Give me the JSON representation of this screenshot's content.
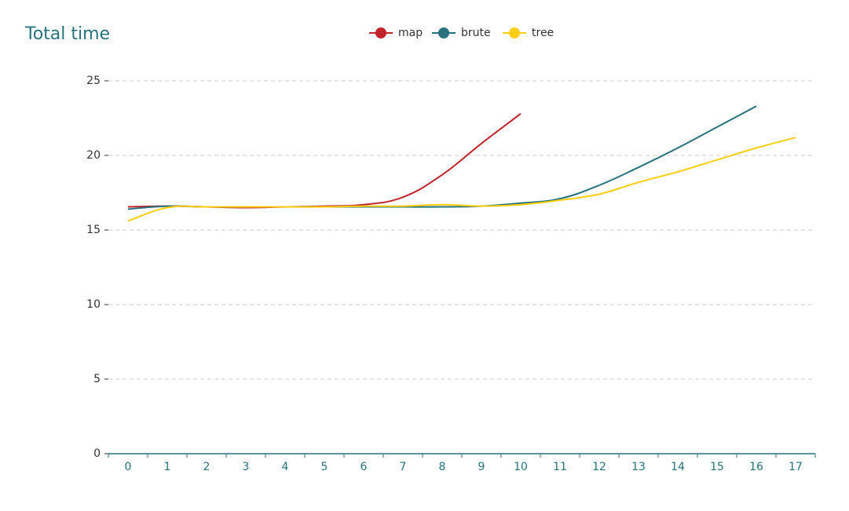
{
  "chart_data": {
    "type": "line",
    "title": "Total time",
    "categories": [
      "0",
      "1",
      "2",
      "3",
      "4",
      "5",
      "6",
      "7",
      "8",
      "9",
      "10",
      "11",
      "12",
      "13",
      "14",
      "15",
      "16",
      "17"
    ],
    "series": [
      {
        "name": "map",
        "color": "#c1232b",
        "values": [
          16.55,
          16.6,
          16.55,
          16.5,
          16.55,
          16.6,
          16.7,
          17.2,
          18.7,
          20.8,
          22.8,
          null,
          null,
          null,
          null,
          null,
          null,
          null
        ]
      },
      {
        "name": "brute",
        "color": "#27727b",
        "values": [
          16.4,
          16.6,
          16.55,
          16.55,
          16.55,
          16.55,
          16.55,
          16.55,
          16.55,
          16.6,
          16.8,
          17.1,
          18.0,
          19.2,
          20.5,
          21.9,
          23.3,
          null
        ]
      },
      {
        "name": "tree",
        "color": "#fcce10",
        "values": [
          15.6,
          16.5,
          16.55,
          16.55,
          16.55,
          16.55,
          16.6,
          16.6,
          16.7,
          16.6,
          16.7,
          17.0,
          17.4,
          18.2,
          18.9,
          19.7,
          20.5,
          21.2
        ]
      }
    ],
    "ylim": [
      0,
      25
    ],
    "yticks": [
      0,
      5,
      10,
      15,
      20,
      25
    ],
    "grid": true,
    "smooth": true,
    "legend": "top"
  }
}
